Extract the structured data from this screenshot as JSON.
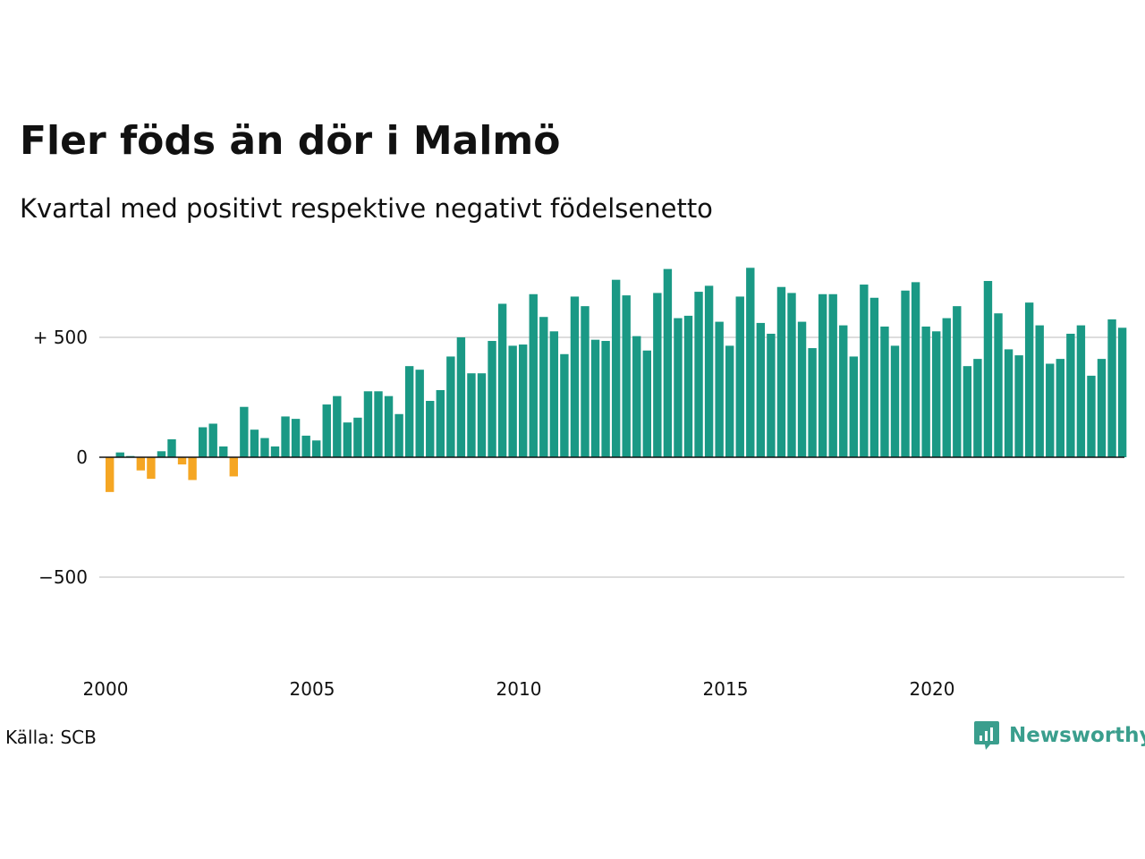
{
  "title": "Fler föds än dör i Malmö",
  "subtitle": "Kvartal med positivt respektive negativt födelsenetto",
  "source": "Källa: SCB",
  "logo": {
    "text": "Newsworthy",
    "icon": "newsworthy-chart-bubble-icon"
  },
  "colors": {
    "positive": "#1a9985",
    "negative": "#f5a623",
    "grid": "#dddddd",
    "axis": "#111111",
    "logo": "#3a9e8d"
  },
  "chart_data": {
    "type": "bar",
    "title": "Fler föds än dör i Malmö",
    "subtitle": "Kvartal med positivt respektive negativt födelsenetto",
    "xlabel": "",
    "ylabel": "",
    "ylim": [
      -800,
      800
    ],
    "x_start": 2000,
    "x_end": 2025,
    "x_ticks": [
      {
        "value": 2000,
        "label": "2000"
      },
      {
        "value": 2005,
        "label": "2005"
      },
      {
        "value": 2010,
        "label": "2010"
      },
      {
        "value": 2015,
        "label": "2015"
      },
      {
        "value": 2020,
        "label": "2020"
      }
    ],
    "y_ticks": [
      {
        "value": 500,
        "label": "+ 500"
      },
      {
        "value": 0,
        "label": "0"
      },
      {
        "value": -500,
        "label": "−500"
      }
    ],
    "grid": true,
    "values": [
      -145,
      20,
      5,
      -55,
      -90,
      25,
      75,
      -30,
      -95,
      125,
      140,
      45,
      -80,
      210,
      115,
      80,
      45,
      170,
      160,
      90,
      70,
      220,
      255,
      145,
      165,
      275,
      275,
      255,
      180,
      380,
      365,
      235,
      280,
      420,
      500,
      350,
      350,
      485,
      640,
      465,
      470,
      680,
      585,
      525,
      430,
      670,
      630,
      490,
      485,
      740,
      675,
      505,
      445,
      685,
      785,
      580,
      590,
      690,
      715,
      565,
      465,
      670,
      790,
      560,
      515,
      710,
      685,
      565,
      455,
      680,
      680,
      550,
      420,
      720,
      665,
      545,
      465,
      695,
      730,
      545,
      525,
      580,
      630,
      380,
      410,
      735,
      600,
      450,
      425,
      645,
      550,
      390,
      410,
      515,
      550,
      340,
      410,
      575,
      540
    ]
  }
}
